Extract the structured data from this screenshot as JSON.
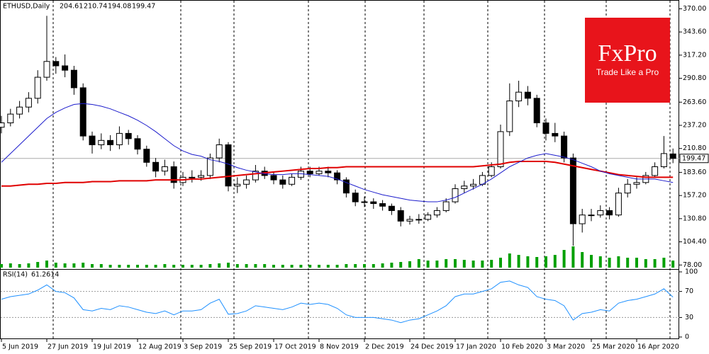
{
  "chart_data": {
    "type": "candlestick",
    "symbol": "ETHUSD,Daily",
    "categories": [
      "5 Jun 2019",
      null,
      null,
      null,
      null,
      "27 Jun 2019",
      null,
      null,
      null,
      null,
      "19 Jul 2019",
      null,
      null,
      null,
      null,
      "12 Aug 2019",
      null,
      null,
      null,
      null,
      "3 Sep 2019",
      null,
      null,
      null,
      null,
      "25 Sep 2019",
      null,
      null,
      null,
      null,
      "17 Oct 2019",
      null,
      null,
      null,
      null,
      "8 Nov 2019",
      null,
      null,
      null,
      null,
      "2 Dec 2019",
      null,
      null,
      null,
      null,
      "24 Dec 2019",
      null,
      null,
      null,
      null,
      "17 Jan 2020",
      null,
      null,
      null,
      null,
      "10 Feb 2020",
      null,
      null,
      null,
      null,
      "3 Mar 2020",
      null,
      null,
      null,
      null,
      "25 Mar 2020",
      null,
      null,
      null,
      null,
      "16 Apr 2020",
      null,
      null,
      null,
      null
    ],
    "open": [
      235,
      240,
      250,
      258,
      268,
      292,
      310,
      305,
      300,
      280,
      225,
      215,
      220,
      215,
      228,
      222,
      210,
      195,
      185,
      190,
      172,
      178,
      178,
      180,
      200,
      215,
      168,
      170,
      175,
      185,
      180,
      175,
      170,
      178,
      185,
      182,
      185,
      183,
      175,
      160,
      150,
      150,
      148,
      145,
      140,
      128,
      130,
      130,
      135,
      140,
      150,
      165,
      168,
      170,
      180,
      190,
      230,
      265,
      275,
      268,
      240,
      228,
      225,
      200,
      125,
      135,
      135,
      140,
      135,
      160,
      170,
      172,
      180,
      190,
      204.61
    ],
    "high": [
      248,
      256,
      265,
      275,
      300,
      362,
      315,
      318,
      305,
      285,
      230,
      228,
      226,
      236,
      232,
      226,
      214,
      200,
      198,
      196,
      184,
      186,
      186,
      205,
      222,
      218,
      178,
      180,
      192,
      190,
      184,
      180,
      182,
      190,
      190,
      190,
      190,
      186,
      178,
      164,
      156,
      154,
      152,
      148,
      144,
      134,
      136,
      138,
      144,
      154,
      170,
      174,
      176,
      184,
      195,
      238,
      285,
      288,
      282,
      272,
      245,
      240,
      230,
      205,
      142,
      142,
      146,
      144,
      166,
      176,
      178,
      184,
      195,
      225,
      210.74
    ],
    "low": [
      228,
      236,
      245,
      252,
      262,
      288,
      296,
      292,
      272,
      220,
      205,
      210,
      208,
      210,
      215,
      204,
      190,
      178,
      180,
      165,
      168,
      172,
      174,
      176,
      195,
      162,
      160,
      165,
      172,
      176,
      170,
      165,
      168,
      175,
      178,
      180,
      178,
      170,
      155,
      145,
      144,
      142,
      140,
      135,
      122,
      124,
      125,
      128,
      132,
      138,
      148,
      160,
      164,
      168,
      178,
      188,
      225,
      258,
      260,
      235,
      220,
      218,
      195,
      100,
      115,
      128,
      132,
      130,
      133,
      155,
      165,
      170,
      178,
      188,
      194.08
    ],
    "close": [
      240,
      250,
      258,
      268,
      292,
      310,
      305,
      300,
      280,
      225,
      215,
      220,
      215,
      228,
      222,
      210,
      195,
      185,
      190,
      172,
      178,
      178,
      180,
      200,
      215,
      168,
      170,
      175,
      185,
      180,
      175,
      170,
      178,
      185,
      182,
      185,
      183,
      175,
      160,
      150,
      150,
      148,
      145,
      140,
      128,
      130,
      130,
      135,
      140,
      150,
      165,
      168,
      170,
      180,
      190,
      230,
      265,
      275,
      268,
      240,
      228,
      225,
      200,
      125,
      135,
      135,
      140,
      135,
      160,
      170,
      172,
      180,
      190,
      205,
      199.47
    ],
    "volume": {
      "color": "#00a000",
      "values": [
        5,
        6,
        5,
        6,
        8,
        10,
        7,
        6,
        6,
        7,
        5,
        5,
        4,
        4,
        4,
        4,
        4,
        4,
        5,
        4,
        4,
        4,
        4,
        5,
        6,
        7,
        5,
        5,
        5,
        5,
        4,
        4,
        4,
        4,
        4,
        4,
        4,
        4,
        5,
        5,
        5,
        5,
        6,
        7,
        8,
        9,
        12,
        10,
        10,
        12,
        12,
        11,
        10,
        10,
        11,
        14,
        20,
        18,
        16,
        15,
        16,
        18,
        25,
        30,
        22,
        18,
        16,
        14,
        16,
        14,
        14,
        12,
        12,
        14,
        10
      ]
    },
    "series": [
      {
        "color": "#e00000",
        "values": [
          168,
          168,
          169,
          170,
          170,
          171,
          171,
          172,
          172,
          172,
          173,
          173,
          173,
          174,
          174,
          174,
          174,
          175,
          175,
          175,
          175,
          176,
          176,
          177,
          178,
          179,
          180,
          181,
          182,
          183,
          184,
          185,
          186,
          187,
          188,
          188,
          189,
          189,
          190,
          190,
          190,
          190,
          190,
          190,
          190,
          190,
          190,
          190,
          190,
          190,
          190,
          190,
          190,
          191,
          192,
          193,
          195,
          196,
          196,
          196,
          196,
          195,
          193,
          191,
          189,
          187,
          185,
          183,
          181,
          180,
          179,
          178,
          178,
          178,
          178
        ]
      },
      {
        "color": "#1c1ccc",
        "values": [
          195,
          205,
          215,
          225,
          235,
          245,
          252,
          257,
          261,
          262,
          261,
          259,
          256,
          252,
          248,
          243,
          237,
          230,
          222,
          214,
          208,
          204,
          202,
          198,
          196,
          193,
          189,
          186,
          184,
          182,
          181,
          181,
          182,
          182,
          181,
          180,
          179,
          176,
          172,
          168,
          164,
          161,
          158,
          156,
          154,
          152,
          151,
          150,
          150,
          152,
          155,
          160,
          165,
          170,
          176,
          183,
          190,
          195,
          200,
          203,
          205,
          203,
          201,
          198,
          194,
          190,
          185,
          182,
          180,
          178,
          176,
          176,
          176,
          174,
          172
        ]
      }
    ],
    "ylim": [
      75,
      376
    ],
    "yticks": [
      {
        "value": 370,
        "label": "370.00"
      },
      {
        "value": 343.6,
        "label": "343.60"
      },
      {
        "value": 317.2,
        "label": "317.20"
      },
      {
        "value": 290.8,
        "label": "290.80"
      },
      {
        "value": 263.6,
        "label": "263.60"
      },
      {
        "value": 237.2,
        "label": "237.20"
      },
      {
        "value": 210.8,
        "label": "210.80"
      },
      {
        "value": 183.6,
        "label": "183.60"
      },
      {
        "value": 157.2,
        "label": "157.20"
      },
      {
        "value": 130.8,
        "label": "130.80"
      },
      {
        "value": 104.4,
        "label": "104.40"
      },
      {
        "value": 78,
        "label": "78.00"
      }
    ],
    "rsi": {
      "name": "RSI(14)",
      "color": "#1e90ff",
      "values": [
        58,
        62,
        64,
        66,
        72,
        80,
        70,
        68,
        60,
        42,
        40,
        44,
        42,
        48,
        46,
        42,
        38,
        36,
        40,
        34,
        40,
        40,
        42,
        52,
        58,
        35,
        36,
        40,
        48,
        46,
        44,
        42,
        46,
        52,
        50,
        52,
        50,
        44,
        34,
        30,
        30,
        30,
        28,
        26,
        22,
        26,
        28,
        34,
        40,
        48,
        62,
        66,
        66,
        70,
        74,
        84,
        86,
        80,
        76,
        62,
        58,
        56,
        48,
        26,
        36,
        38,
        42,
        40,
        52,
        56,
        58,
        62,
        66,
        74,
        61.2614
      ],
      "ylim": [
        0,
        100
      ],
      "yticks": [
        100,
        70,
        30,
        0
      ],
      "levels": [
        70,
        30
      ]
    },
    "watermark": {
      "name": "FxPro",
      "tagline": "Trade Like a Pro",
      "color": "#e8141b"
    }
  }
}
